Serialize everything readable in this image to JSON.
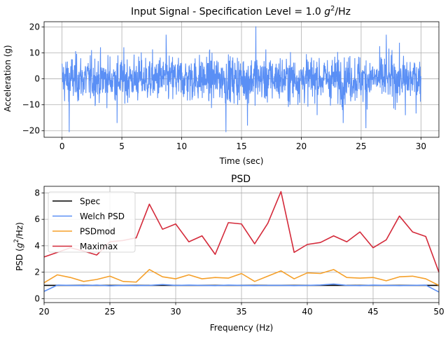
{
  "chart_data": [
    {
      "type": "line",
      "title": "Input Signal - Specification Level = 1.0 g²/Hz",
      "title_parts": [
        "Input Signal - Specification Level = 1.0 ",
        "g",
        "2",
        "/Hz"
      ],
      "xlabel": "Time (sec)",
      "ylabel": "Acceleration (g)",
      "xlim": [
        -1.5,
        31.5
      ],
      "ylim": [
        -22.5,
        22
      ],
      "xticks": [
        0,
        5,
        10,
        15,
        20,
        25,
        30
      ],
      "yticks": [
        -20,
        -10,
        0,
        10,
        20
      ],
      "grid": true,
      "signal": {
        "t_start": 0,
        "t_end": 30,
        "envelope": 12,
        "peaks": [
          {
            "t": 0.6,
            "v": -20.5
          },
          {
            "t": 4.6,
            "v": -17
          },
          {
            "t": 8.7,
            "v": 17
          },
          {
            "t": 13.7,
            "v": -20.5
          },
          {
            "t": 16.2,
            "v": 20.2
          },
          {
            "t": 15.5,
            "v": -18
          },
          {
            "t": 23.5,
            "v": -17
          },
          {
            "t": 25.4,
            "v": -19
          },
          {
            "t": 27.1,
            "v": 17
          },
          {
            "t": 28.7,
            "v": -14
          }
        ]
      },
      "color": "#5a8ff5"
    },
    {
      "type": "line",
      "title": "PSD",
      "xlabel": "Frequency (Hz)",
      "ylabel_parts": [
        "PSD (",
        "g",
        "2",
        "/Hz)"
      ],
      "xlim": [
        20,
        50
      ],
      "ylim": [
        -0.3,
        8.5
      ],
      "xticks": [
        20,
        25,
        30,
        35,
        40,
        45,
        50
      ],
      "yticks": [
        0,
        2,
        4,
        6,
        8
      ],
      "grid": true,
      "legend": "upper-left",
      "x": [
        20,
        21,
        22,
        23,
        24,
        25,
        26,
        27,
        28,
        29,
        30,
        31,
        32,
        33,
        34,
        35,
        36,
        37,
        38,
        39,
        40,
        41,
        42,
        43,
        44,
        45,
        46,
        47,
        48,
        49,
        50
      ],
      "series": [
        {
          "name": "Spec",
          "color": "#000000",
          "values": [
            1,
            1,
            1,
            1,
            1,
            1,
            1,
            1,
            1,
            1,
            1,
            1,
            1,
            1,
            1,
            1,
            1,
            1,
            1,
            1,
            1,
            1,
            1,
            1,
            1,
            1,
            1,
            1,
            1,
            1,
            1
          ]
        },
        {
          "name": "Welch PSD",
          "color": "#5a8ff5",
          "values": [
            0.55,
            1.02,
            1.0,
            0.98,
            1.02,
            0.97,
            1.0,
            0.98,
            1.0,
            1.06,
            1.0,
            1.02,
            1.0,
            0.98,
            1.02,
            1.0,
            0.98,
            1.0,
            1.0,
            0.98,
            1.0,
            1.03,
            1.1,
            1.0,
            0.98,
            1.02,
            1.0,
            0.98,
            1.0,
            1.02,
            0.5
          ]
        },
        {
          "name": "PSDmod",
          "color": "#f5a02a",
          "values": [
            1.2,
            1.8,
            1.6,
            1.3,
            1.45,
            1.7,
            1.3,
            1.25,
            2.2,
            1.65,
            1.5,
            1.8,
            1.5,
            1.6,
            1.55,
            1.9,
            1.3,
            1.7,
            2.1,
            1.5,
            1.95,
            1.9,
            2.2,
            1.6,
            1.55,
            1.6,
            1.35,
            1.65,
            1.7,
            1.5,
            1.0
          ]
        },
        {
          "name": "Maximax",
          "color": "#d42a3a",
          "values": [
            3.15,
            3.5,
            3.85,
            3.6,
            3.3,
            4.3,
            4.4,
            4.6,
            7.15,
            5.25,
            5.65,
            4.3,
            4.75,
            3.35,
            5.75,
            5.65,
            4.15,
            5.7,
            8.1,
            3.5,
            4.1,
            4.25,
            4.75,
            4.3,
            5.05,
            3.85,
            4.45,
            6.25,
            5.05,
            4.7,
            2.0
          ]
        }
      ]
    }
  ]
}
